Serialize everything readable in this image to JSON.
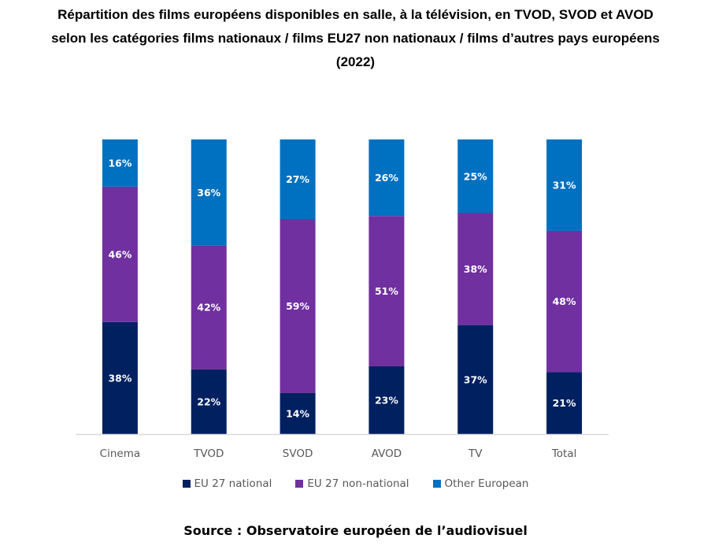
{
  "chart_data": {
    "type": "bar",
    "stacked": true,
    "title_lines": [
      "Répartition des films européens disponibles en salle, à la télévision, en TVOD, SVOD et AVOD",
      "selon les catégories films nationaux / films EU27 non nationaux / films d’autres pays européens",
      "(2022)"
    ],
    "categories": [
      "Cinema",
      "TVOD",
      "SVOD",
      "AVOD",
      "TV",
      "Total"
    ],
    "series": [
      {
        "name": "EU 27 national",
        "color": "#002060",
        "values": [
          38,
          22,
          14,
          23,
          37,
          21
        ]
      },
      {
        "name": "EU 27 non-national",
        "color": "#7030A0",
        "values": [
          46,
          42,
          59,
          51,
          38,
          48
        ]
      },
      {
        "name": "Other European",
        "color": "#0070C0",
        "values": [
          16,
          36,
          27,
          26,
          25,
          31
        ]
      }
    ],
    "value_suffix": "%",
    "xlabel": "",
    "ylabel": "",
    "ylim": [
      0,
      100
    ],
    "y_axis_visible": false,
    "grid": false,
    "legend_position": "bottom",
    "axis_color": "#D9D9D9"
  },
  "source": "Source : Observatoire européen de l’audiovisuel"
}
